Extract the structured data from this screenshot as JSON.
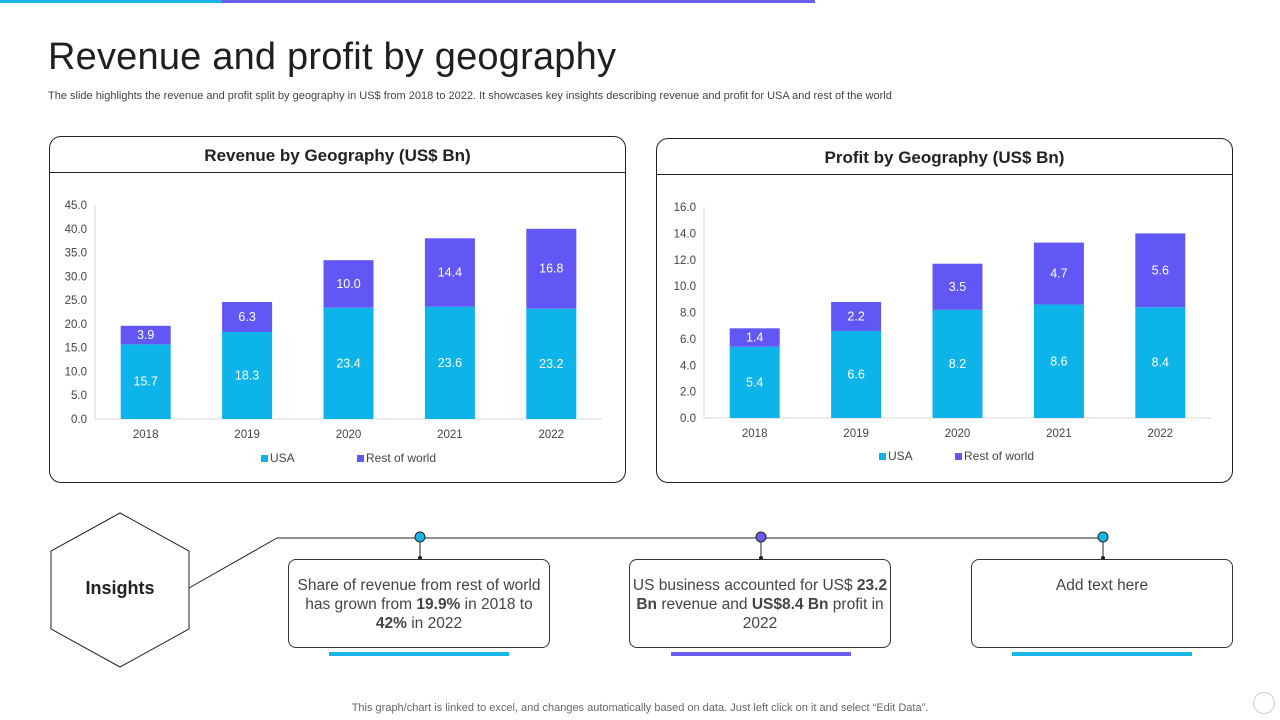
{
  "page": {
    "title": "Revenue and profit by geography",
    "subtitle": "The slide highlights the revenue and profit split by geography in US$ from 2018 to 2022. It showcases key insights describing revenue and profit for USA and rest of the world",
    "footer": "This graph/chart is linked to excel, and changes automatically based on data. Just left click on it and select “Edit Data”."
  },
  "colors": {
    "usa": "#0db4ea",
    "rest": "#6157f5",
    "accent_cyan": "#1ab5e8",
    "accent_purple": "#6a5cf0"
  },
  "chart_data": [
    {
      "type": "bar",
      "stacked": true,
      "title": "Revenue by Geography (US$ Bn)",
      "categories": [
        "2018",
        "2019",
        "2020",
        "2021",
        "2022"
      ],
      "series": [
        {
          "name": "USA",
          "values": [
            15.7,
            18.3,
            23.4,
            23.6,
            23.2
          ]
        },
        {
          "name": "Rest of world",
          "values": [
            3.9,
            6.3,
            10.0,
            14.4,
            16.8
          ]
        }
      ],
      "ylim": [
        0,
        45
      ],
      "yticks": [
        "0.0",
        "5.0",
        "10.0",
        "15.0",
        "20.0",
        "25.0",
        "30.0",
        "35.0",
        "40.0",
        "45.0"
      ],
      "legend": "bottom"
    },
    {
      "type": "bar",
      "stacked": true,
      "title": "Profit by Geography (US$ Bn)",
      "categories": [
        "2018",
        "2019",
        "2020",
        "2021",
        "2022"
      ],
      "series": [
        {
          "name": "USA",
          "values": [
            5.4,
            6.6,
            8.2,
            8.6,
            8.4
          ]
        },
        {
          "name": "Rest of world",
          "values": [
            1.4,
            2.2,
            3.5,
            4.7,
            5.6
          ]
        }
      ],
      "ylim": [
        0,
        16
      ],
      "yticks": [
        "0.0",
        "2.0",
        "4.0",
        "6.0",
        "8.0",
        "10.0",
        "12.0",
        "14.0",
        "16.0"
      ],
      "legend": "bottom"
    }
  ],
  "insights": {
    "label": "Insights",
    "box1": {
      "t1": "Share of revenue from rest of world has grown from ",
      "b1": "19.9%",
      "t2": " in 2018 to ",
      "b2": "42%",
      "t3": " in 2022"
    },
    "box2": {
      "t1": "US business accounted for US$ ",
      "b1": "23.2 Bn",
      "t2": " revenue and ",
      "b2": "US$8.4 Bn",
      "t3": " profit in 2022"
    },
    "box3": {
      "t1": "Add text here"
    }
  }
}
